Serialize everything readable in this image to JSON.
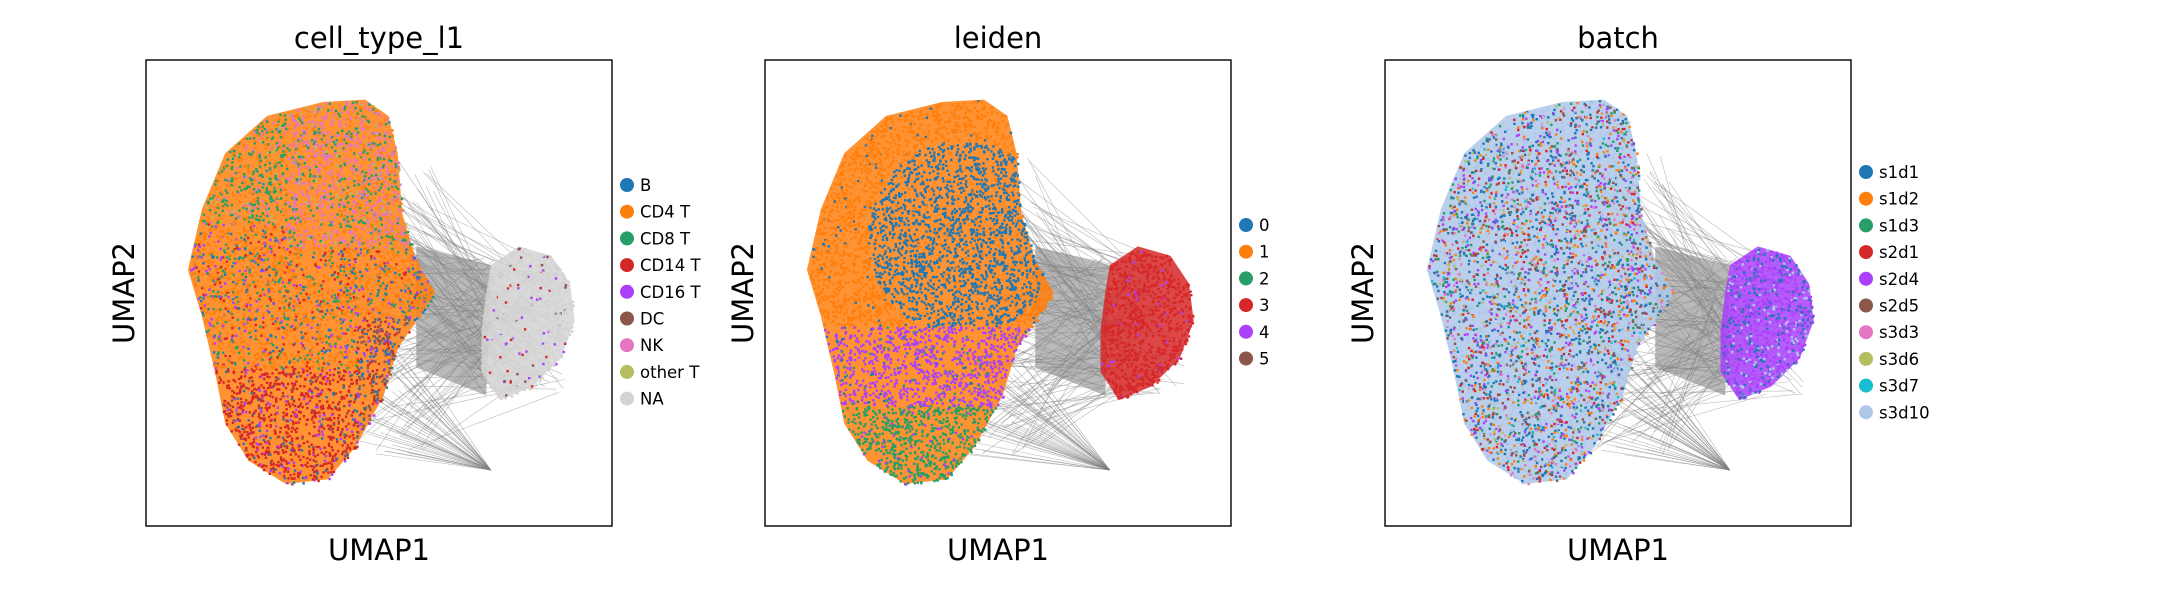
{
  "chart_data": [
    {
      "type": "scatter",
      "title": "cell_type_l1",
      "xlabel": "UMAP1",
      "ylabel": "UMAP2",
      "grid": false,
      "ticks": false,
      "legend": "right",
      "categories": [
        "B",
        "CD4 T",
        "CD8 T",
        "CD14 T",
        "CD16 T",
        "DC",
        "NK",
        "other T",
        "NA"
      ],
      "colors": [
        "#1f77b4",
        "#ff7f0e",
        "#279e68",
        "#d62728",
        "#aa40fc",
        "#8c564b",
        "#e377c2",
        "#b5bd61",
        "#d3d3d3"
      ],
      "edge_color": "#808080"
    },
    {
      "type": "scatter",
      "title": "leiden",
      "xlabel": "UMAP1",
      "ylabel": "UMAP2",
      "grid": false,
      "ticks": false,
      "legend": "right",
      "categories": [
        "0",
        "1",
        "2",
        "3",
        "4",
        "5"
      ],
      "colors": [
        "#1f77b4",
        "#ff7f0e",
        "#279e68",
        "#d62728",
        "#aa40fc",
        "#8c564b"
      ],
      "edge_color": "#808080"
    },
    {
      "type": "scatter",
      "title": "batch",
      "xlabel": "UMAP1",
      "ylabel": "UMAP2",
      "grid": false,
      "ticks": false,
      "legend": "right",
      "categories": [
        "s1d1",
        "s1d2",
        "s1d3",
        "s2d1",
        "s2d4",
        "s2d5",
        "s3d3",
        "s3d6",
        "s3d7",
        "s3d10"
      ],
      "colors": [
        "#1f77b4",
        "#ff7f0e",
        "#279e68",
        "#d62728",
        "#aa40fc",
        "#8c564b",
        "#e377c2",
        "#b5bd61",
        "#17becf",
        "#aec7e8"
      ],
      "edge_color": "#808080"
    }
  ]
}
